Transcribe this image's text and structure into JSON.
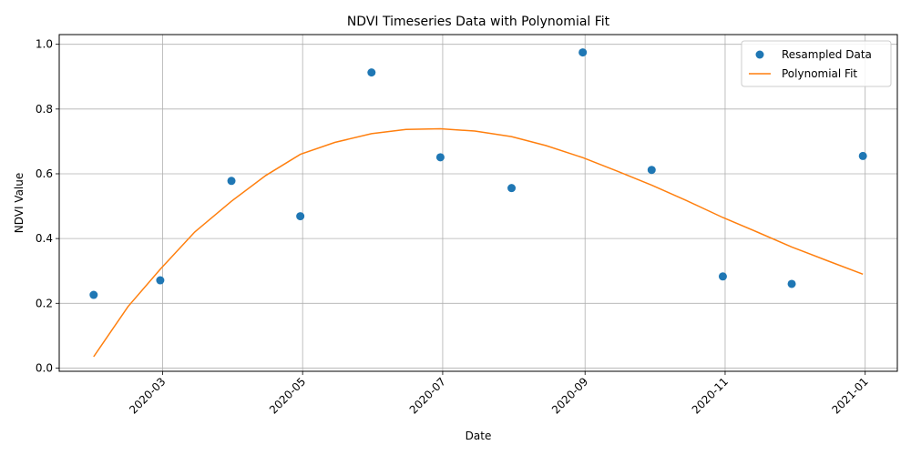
{
  "chart_data": {
    "type": "scatter",
    "title": "NDVI Timeseries Data with Polynomial Fit",
    "xlabel": "Date",
    "ylabel": "NDVI Value",
    "xlim": [
      "2020-01-16",
      "2021-01-15"
    ],
    "ylim": [
      -0.01,
      1.03
    ],
    "grid": true,
    "legend_position": "top-right",
    "x_ticks": [
      "2020-03",
      "2020-05",
      "2020-07",
      "2020-09",
      "2020-11",
      "2021-01"
    ],
    "x_tick_dates": [
      "2020-03-01",
      "2020-05-01",
      "2020-07-01",
      "2020-09-01",
      "2020-11-01",
      "2021-01-01"
    ],
    "y_ticks": [
      "0.0",
      "0.2",
      "0.4",
      "0.6",
      "0.8",
      "1.0"
    ],
    "y_tick_values": [
      0.0,
      0.2,
      0.4,
      0.6,
      0.8,
      1.0
    ],
    "series": [
      {
        "name": "Resampled Data",
        "kind": "markers",
        "color": "#1f77b4",
        "points": [
          {
            "date": "2020-01-31",
            "value": 0.226
          },
          {
            "date": "2020-02-29",
            "value": 0.271
          },
          {
            "date": "2020-03-31",
            "value": 0.578
          },
          {
            "date": "2020-04-30",
            "value": 0.469
          },
          {
            "date": "2020-05-31",
            "value": 0.913
          },
          {
            "date": "2020-06-30",
            "value": 0.651
          },
          {
            "date": "2020-07-31",
            "value": 0.556
          },
          {
            "date": "2020-08-31",
            "value": 0.975
          },
          {
            "date": "2020-09-30",
            "value": 0.612
          },
          {
            "date": "2020-10-31",
            "value": 0.283
          },
          {
            "date": "2020-11-30",
            "value": 0.26
          },
          {
            "date": "2020-12-31",
            "value": 0.655
          }
        ]
      },
      {
        "name": "Polynomial Fit",
        "kind": "line",
        "color": "#ff7f0e",
        "points": [
          {
            "date": "2020-01-31",
            "value": 0.035
          },
          {
            "date": "2020-02-15",
            "value": 0.19
          },
          {
            "date": "2020-02-29",
            "value": 0.305
          },
          {
            "date": "2020-03-15",
            "value": 0.42
          },
          {
            "date": "2020-03-31",
            "value": 0.515
          },
          {
            "date": "2020-04-15",
            "value": 0.595
          },
          {
            "date": "2020-04-30",
            "value": 0.66
          },
          {
            "date": "2020-05-15",
            "value": 0.697
          },
          {
            "date": "2020-05-31",
            "value": 0.724
          },
          {
            "date": "2020-06-15",
            "value": 0.737
          },
          {
            "date": "2020-06-30",
            "value": 0.739
          },
          {
            "date": "2020-07-15",
            "value": 0.732
          },
          {
            "date": "2020-07-31",
            "value": 0.715
          },
          {
            "date": "2020-08-15",
            "value": 0.687
          },
          {
            "date": "2020-08-31",
            "value": 0.65
          },
          {
            "date": "2020-09-15",
            "value": 0.608
          },
          {
            "date": "2020-09-30",
            "value": 0.565
          },
          {
            "date": "2020-10-15",
            "value": 0.518
          },
          {
            "date": "2020-10-31",
            "value": 0.465
          },
          {
            "date": "2020-11-15",
            "value": 0.42
          },
          {
            "date": "2020-11-30",
            "value": 0.374
          },
          {
            "date": "2020-12-15",
            "value": 0.333
          },
          {
            "date": "2020-12-31",
            "value": 0.29
          }
        ]
      }
    ]
  }
}
